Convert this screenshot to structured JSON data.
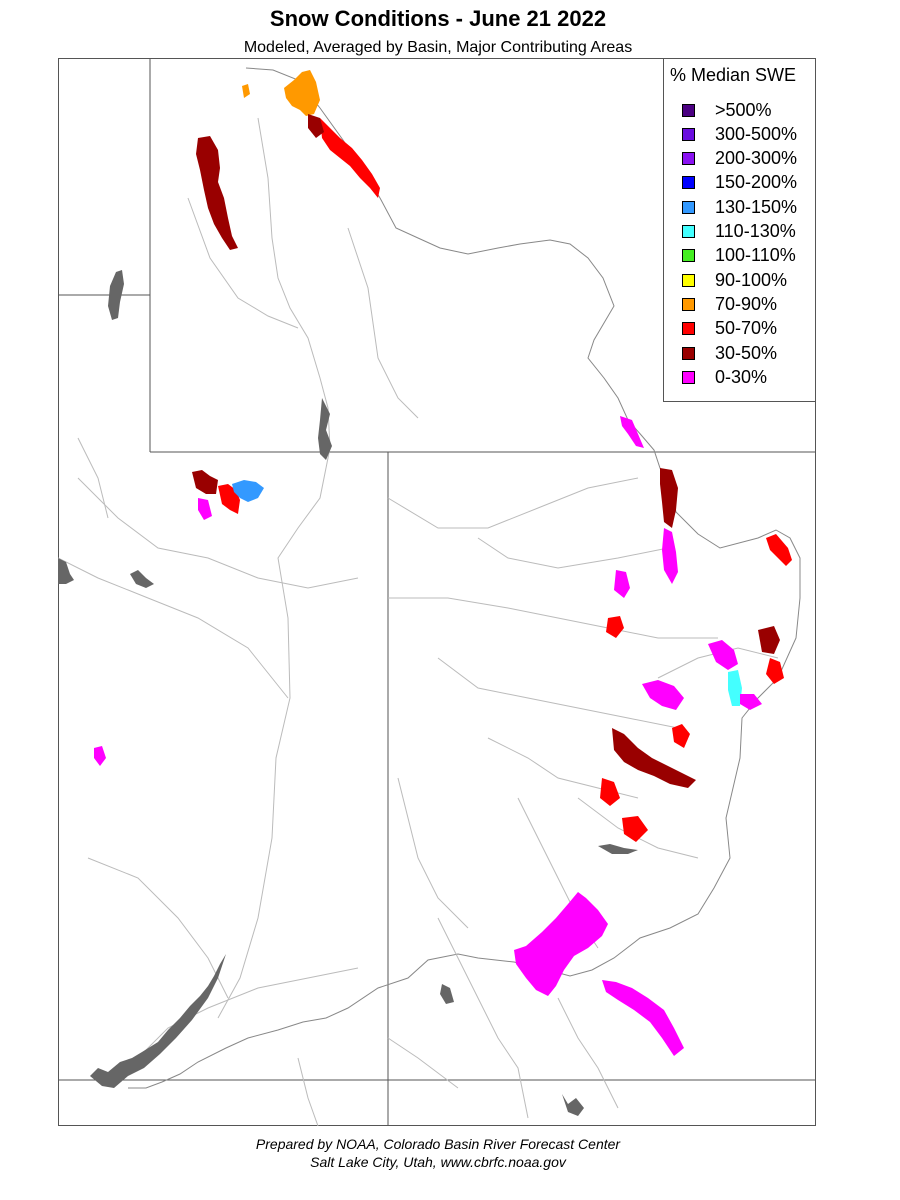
{
  "header": {
    "title": "Snow Conditions - June 21 2022",
    "subtitle": "Modeled, Averaged by Basin, Major Contributing Areas"
  },
  "legend": {
    "title": "% Median SWE",
    "items": [
      {
        "label": ">500%",
        "color": "#4b0082"
      },
      {
        "label": "300-500%",
        "color": "#6a0ddf"
      },
      {
        "label": "200-300%",
        "color": "#8a12f2"
      },
      {
        "label": "150-200%",
        "color": "#0000ff"
      },
      {
        "label": "130-150%",
        "color": "#3399ff"
      },
      {
        "label": "110-130%",
        "color": "#44ffff"
      },
      {
        "label": "100-110%",
        "color": "#44ee22"
      },
      {
        "label": "90-100%",
        "color": "#ffff00"
      },
      {
        "label": "70-90%",
        "color": "#ff9900"
      },
      {
        "label": "50-70%",
        "color": "#ff0000"
      },
      {
        "label": "30-50%",
        "color": "#990000"
      },
      {
        "label": "0-30%",
        "color": "#ff00ff"
      }
    ]
  },
  "map": {
    "border_color": "#555555",
    "river_color": "#bbbbbb",
    "lake_color": "#666666"
  },
  "footer": {
    "line1": "Prepared by NOAA, Colorado Basin River Forecast Center",
    "line2": "Salt Lake City, Utah, www.cbrfc.noaa.gov"
  }
}
